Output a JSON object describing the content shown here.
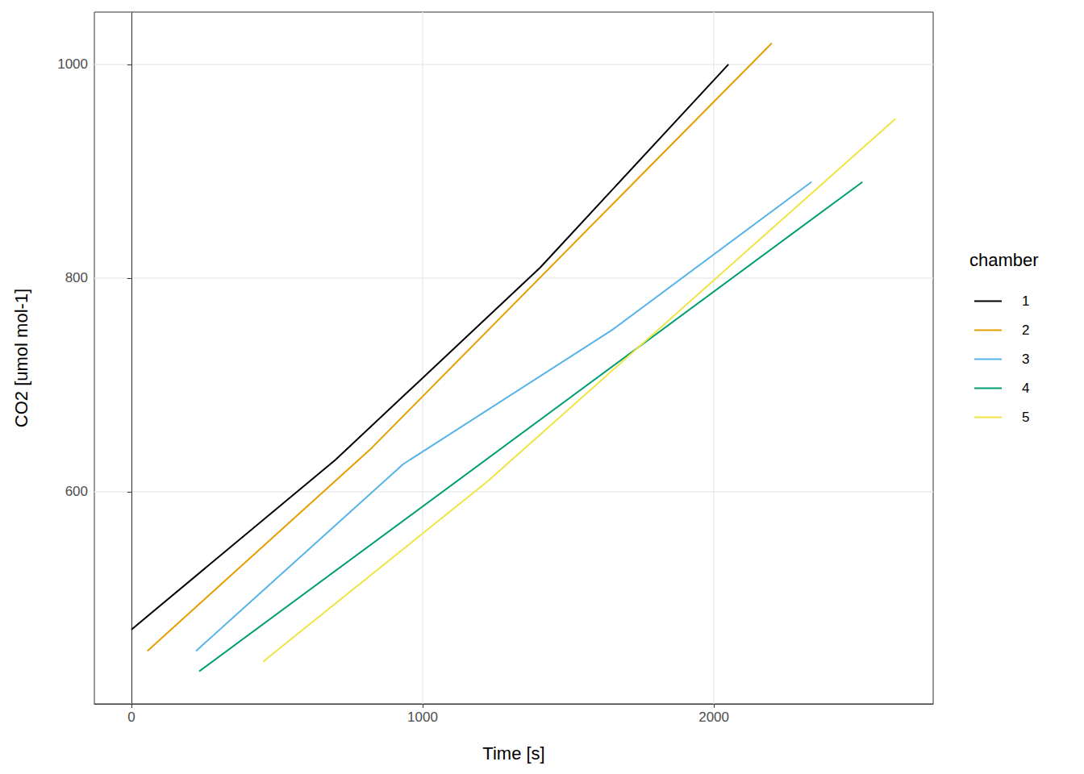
{
  "chart_data": {
    "type": "line",
    "x_label": "Time [s]",
    "y_label": "CO2 [umol mol-1]",
    "legend_title": "chamber",
    "legend": "right",
    "grid": true,
    "xlim": [
      -127,
      2753
    ],
    "xticks": [
      0,
      1000,
      2000
    ],
    "ylim": [
      401.5,
      1049
    ],
    "yticks": [
      600,
      800,
      1000
    ],
    "series": [
      {
        "name": "1",
        "color": "#000000",
        "x": [
          0,
          701,
          1404,
          2050
        ],
        "values": [
          471,
          630,
          810,
          1000
        ]
      },
      {
        "name": "2",
        "color": "#E69F00",
        "x": [
          55,
          825,
          2199
        ],
        "values": [
          451,
          641,
          1020
        ]
      },
      {
        "name": "3",
        "color": "#56B4E9",
        "x": [
          222,
          934,
          1648,
          2335
        ],
        "values": [
          451,
          626,
          751,
          890
        ]
      },
      {
        "name": "4",
        "color": "#009E73",
        "x": [
          233,
          2510
        ],
        "values": [
          432,
          890
        ]
      },
      {
        "name": "5",
        "color": "#F0E442",
        "x": [
          452,
          1224,
          2623
        ],
        "values": [
          441,
          610,
          949
        ]
      }
    ]
  }
}
